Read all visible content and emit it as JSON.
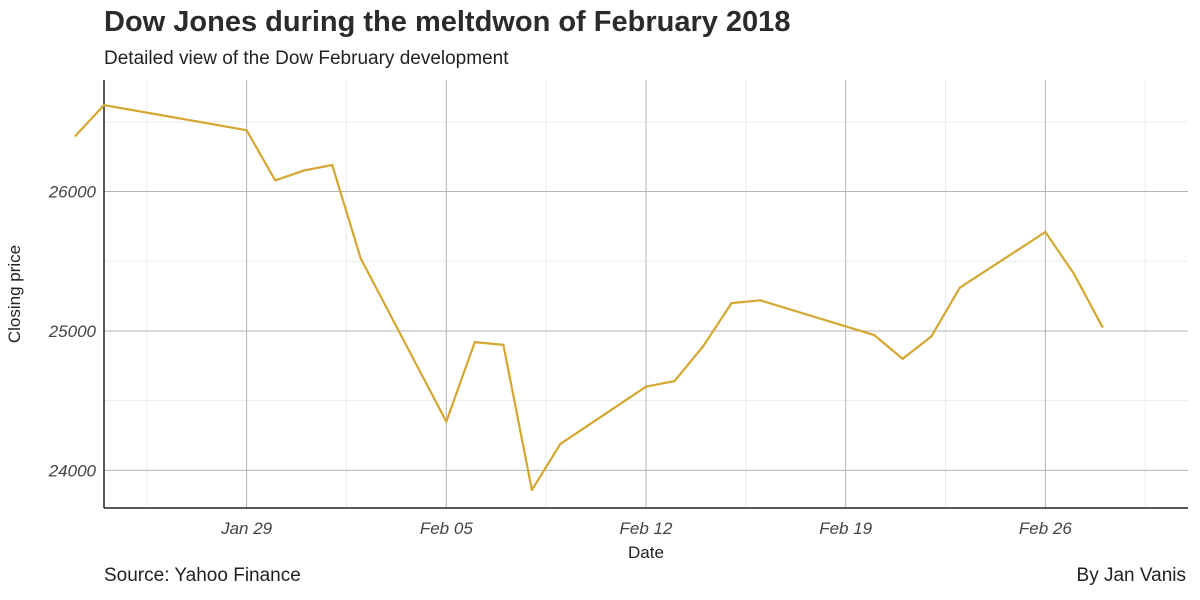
{
  "chart_data": {
    "type": "line",
    "title": "Dow Jones during the meltdwon of February 2018",
    "subtitle": "Detailed view of the Dow February development",
    "xlabel": "Date",
    "ylabel": "Closing price",
    "xlim": [
      "2018-01-24",
      "2018-03-03"
    ],
    "ylim": [
      23730,
      26800
    ],
    "x_ticks": [
      {
        "date": "2018-01-29",
        "label": "Jan 29"
      },
      {
        "date": "2018-02-05",
        "label": "Feb 05"
      },
      {
        "date": "2018-02-12",
        "label": "Feb 12"
      },
      {
        "date": "2018-02-19",
        "label": "Feb 19"
      },
      {
        "date": "2018-02-26",
        "label": "Feb 26"
      }
    ],
    "y_ticks": [
      24000,
      25000,
      26000
    ],
    "grid": true,
    "line_color": "#d4a730",
    "series": [
      {
        "x": [
          "2018-01-23",
          "2018-01-24",
          "2018-01-29",
          "2018-01-30",
          "2018-01-31",
          "2018-02-01",
          "2018-02-02",
          "2018-02-05",
          "2018-02-06",
          "2018-02-07",
          "2018-02-08",
          "2018-02-09",
          "2018-02-12",
          "2018-02-13",
          "2018-02-14",
          "2018-02-15",
          "2018-02-16",
          "2018-02-20",
          "2018-02-21",
          "2018-02-22",
          "2018-02-23",
          "2018-02-26",
          "2018-02-27",
          "2018-02-28"
        ],
        "values": [
          26400,
          26620,
          26440,
          26080,
          26150,
          26190,
          25520,
          24350,
          24920,
          24900,
          23860,
          24190,
          24600,
          24640,
          24890,
          25200,
          25220,
          24970,
          24800,
          24960,
          25310,
          25710,
          25410,
          25030
        ]
      }
    ]
  },
  "footer": {
    "source": "Source: Yahoo Finance",
    "author": "By Jan Vanis"
  }
}
